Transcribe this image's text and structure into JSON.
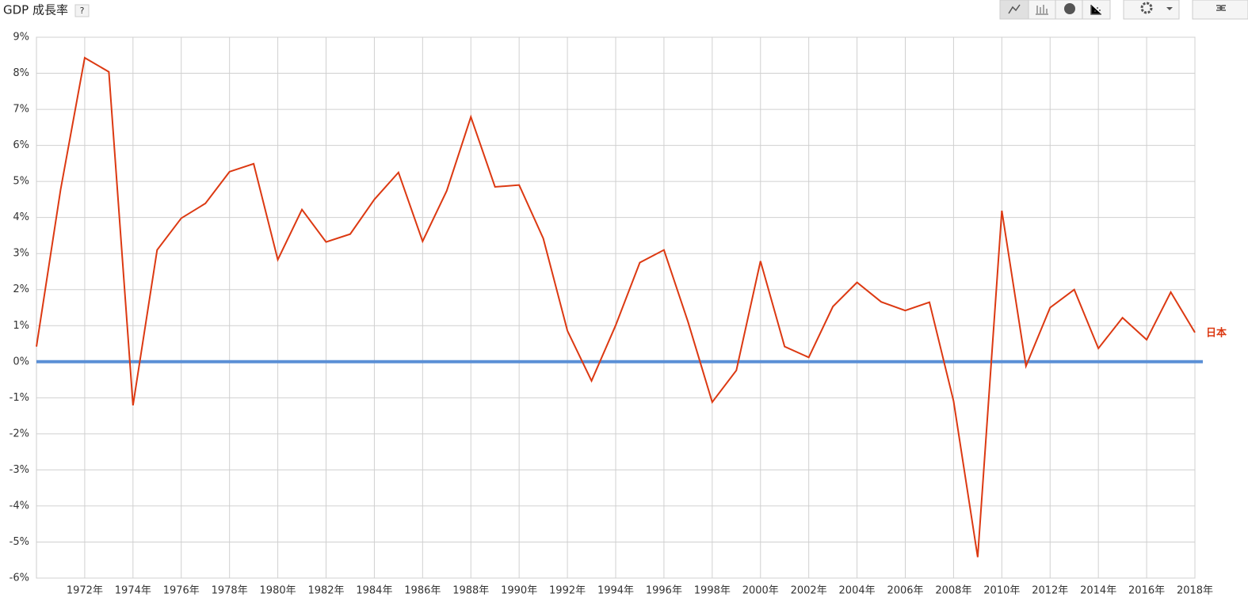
{
  "header": {
    "title": "GDP 成長率",
    "help_label": "?"
  },
  "chart_data": {
    "type": "line",
    "x": [
      1970,
      1971,
      1972,
      1973,
      1974,
      1975,
      1976,
      1977,
      1978,
      1979,
      1980,
      1981,
      1982,
      1983,
      1984,
      1985,
      1986,
      1987,
      1988,
      1989,
      1990,
      1991,
      1992,
      1993,
      1994,
      1995,
      1996,
      1997,
      1998,
      1999,
      2000,
      2001,
      2002,
      2003,
      2004,
      2005,
      2006,
      2007,
      2008,
      2009,
      2010,
      2011,
      2012,
      2013,
      2014,
      2015,
      2016,
      2017,
      2018
    ],
    "series": [
      {
        "name": "日本",
        "color": "#dc3912",
        "values": [
          0.42,
          4.77,
          8.43,
          8.04,
          -1.21,
          3.1,
          3.98,
          4.39,
          5.27,
          5.49,
          2.83,
          4.22,
          3.32,
          3.54,
          4.5,
          5.25,
          3.34,
          4.74,
          6.79,
          4.85,
          4.9,
          3.42,
          0.86,
          -0.53,
          1.01,
          2.75,
          3.1,
          1.1,
          -1.12,
          -0.24,
          2.79,
          0.42,
          0.12,
          1.53,
          2.2,
          1.66,
          1.42,
          1.65,
          -1.09,
          -5.42,
          4.19,
          -0.12,
          1.5,
          2.0,
          0.37,
          1.22,
          0.61,
          1.93,
          0.81
        ]
      }
    ],
    "xlim": [
      1970,
      2018
    ],
    "ylim": [
      -6,
      9
    ],
    "yticks": [
      {
        "value": 9,
        "label": "9%"
      },
      {
        "value": 8,
        "label": "8%"
      },
      {
        "value": 7,
        "label": "7%"
      },
      {
        "value": 6,
        "label": "6%"
      },
      {
        "value": 5,
        "label": "5%"
      },
      {
        "value": 4,
        "label": "4%"
      },
      {
        "value": 3,
        "label": "3%"
      },
      {
        "value": 2,
        "label": "2%"
      },
      {
        "value": 1,
        "label": "1%"
      },
      {
        "value": 0,
        "label": "0%"
      },
      {
        "value": -1,
        "label": "-1%"
      },
      {
        "value": -2,
        "label": "-2%"
      },
      {
        "value": -3,
        "label": "-3%"
      },
      {
        "value": -4,
        "label": "-4%"
      },
      {
        "value": -5,
        "label": "-5%"
      },
      {
        "value": -6,
        "label": "-6%"
      }
    ],
    "xticks": [
      {
        "value": 1972,
        "label": "1972年"
      },
      {
        "value": 1974,
        "label": "1974年"
      },
      {
        "value": 1976,
        "label": "1976年"
      },
      {
        "value": 1978,
        "label": "1978年"
      },
      {
        "value": 1980,
        "label": "1980年"
      },
      {
        "value": 1982,
        "label": "1982年"
      },
      {
        "value": 1984,
        "label": "1984年"
      },
      {
        "value": 1986,
        "label": "1986年"
      },
      {
        "value": 1988,
        "label": "1988年"
      },
      {
        "value": 1990,
        "label": "1990年"
      },
      {
        "value": 1992,
        "label": "1992年"
      },
      {
        "value": 1994,
        "label": "1994年"
      },
      {
        "value": 1996,
        "label": "1996年"
      },
      {
        "value": 1998,
        "label": "1998年"
      },
      {
        "value": 2000,
        "label": "2000年"
      },
      {
        "value": 2002,
        "label": "2002年"
      },
      {
        "value": 2004,
        "label": "2004年"
      },
      {
        "value": 2006,
        "label": "2006年"
      },
      {
        "value": 2008,
        "label": "2008年"
      },
      {
        "value": 2010,
        "label": "2010年"
      },
      {
        "value": 2012,
        "label": "2012年"
      },
      {
        "value": 2014,
        "label": "2014年"
      },
      {
        "value": 2016,
        "label": "2016年"
      },
      {
        "value": 2018,
        "label": "2018年"
      }
    ],
    "grid": true,
    "zero_line_color": "#5b8fd6"
  }
}
